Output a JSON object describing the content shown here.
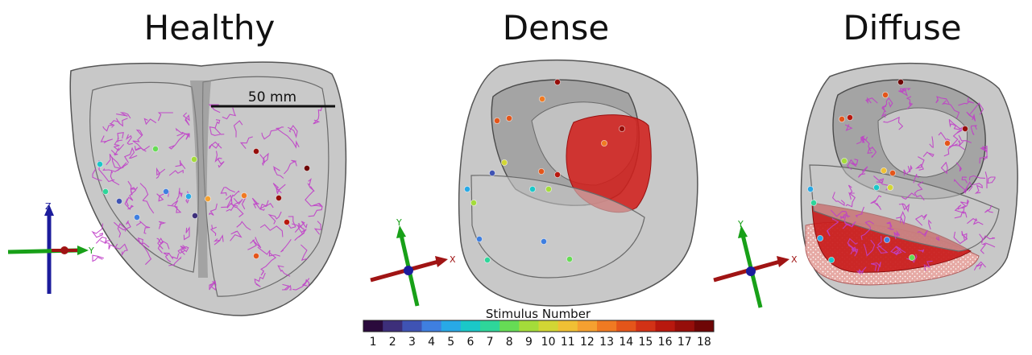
{
  "panels": [
    {
      "title": "Healthy"
    },
    {
      "title": "Dense"
    },
    {
      "title": "Diffuse"
    }
  ],
  "scale_bar": {
    "label": "50 mm"
  },
  "colorbar": {
    "title": "Stimulus Number",
    "ticks": [
      "1",
      "2",
      "3",
      "4",
      "5",
      "6",
      "7",
      "8",
      "9",
      "10",
      "11",
      "12",
      "13",
      "14",
      "15",
      "16",
      "17",
      "18"
    ],
    "colors": [
      "#2a0a3c",
      "#3d2f7a",
      "#3f53b4",
      "#3f7fe0",
      "#28a9e6",
      "#1ac8c8",
      "#2ed69a",
      "#66dc55",
      "#a4dc3a",
      "#d2d634",
      "#f0c034",
      "#f5a030",
      "#f07a22",
      "#e4551a",
      "#d23216",
      "#b8180e",
      "#960e0a",
      "#6e0606"
    ]
  },
  "axes": {
    "healthy": {
      "labels": [
        "Z",
        "Y"
      ]
    },
    "dense": {
      "labels": [
        "Y",
        "X"
      ]
    },
    "diffuse": {
      "labels": [
        "Y",
        "X"
      ]
    }
  },
  "colors": {
    "tissue": "#b3b3b3",
    "purkinje": "#c040c8",
    "scar": "#d0201c",
    "x_axis": "#a01414",
    "y_axis": "#18a018",
    "z_axis": "#1c1c9c"
  }
}
